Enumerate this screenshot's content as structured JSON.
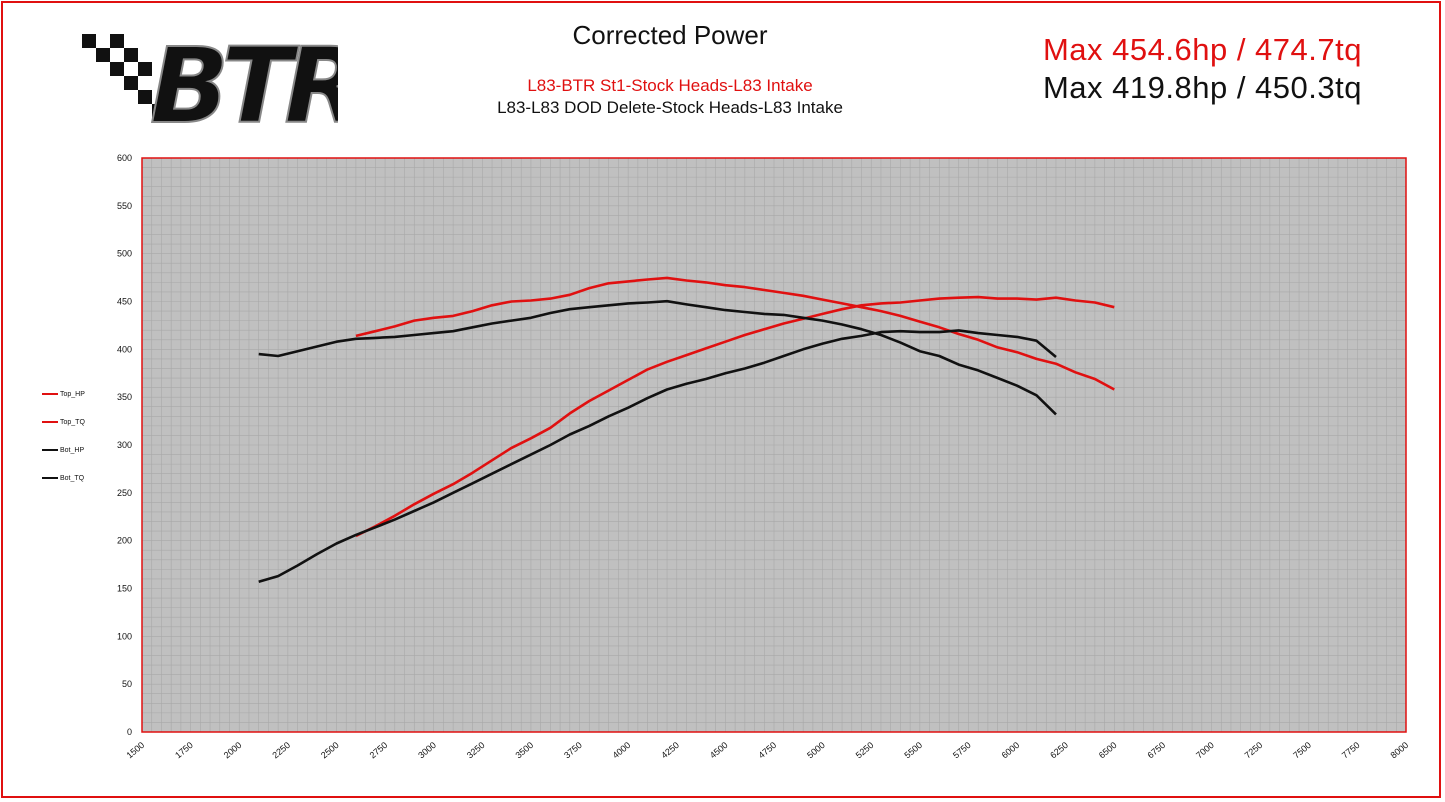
{
  "header": {
    "title": "Corrected Power",
    "subtitle_top": "L83-BTR St1-Stock Heads-L83 Intake",
    "subtitle_bottom": "L83-L83 DOD Delete-Stock Heads-L83 Intake",
    "max_top": "Max  454.6hp / 474.7tq",
    "max_bottom": "Max  419.8hp / 450.3tq"
  },
  "logo": {
    "text": "BTR"
  },
  "colors": {
    "top": "#e01010",
    "bottom": "#111111",
    "plot_bg": "#c0c0c0",
    "grid": "#a8a8a8",
    "border": "#e01010"
  },
  "legend": [
    {
      "label": "Top_HP",
      "color": "#e01010"
    },
    {
      "label": "Top_TQ",
      "color": "#e01010"
    },
    {
      "label": "Bot_HP",
      "color": "#111111"
    },
    {
      "label": "Bot_TQ",
      "color": "#111111"
    }
  ],
  "chart_data": {
    "type": "line",
    "title": "Corrected Power",
    "xlabel": "",
    "ylabel": "",
    "xlim": [
      1500,
      8000
    ],
    "ylim": [
      0,
      600
    ],
    "x_ticks": [
      1500,
      1750,
      2000,
      2250,
      2500,
      2750,
      3000,
      3250,
      3500,
      3750,
      4000,
      4250,
      4500,
      4750,
      5000,
      5250,
      5500,
      5750,
      6000,
      6250,
      6500,
      6750,
      7000,
      7250,
      7500,
      7750,
      8000
    ],
    "y_ticks": [
      0,
      50,
      100,
      150,
      200,
      250,
      300,
      350,
      400,
      450,
      500,
      550,
      600
    ],
    "grid": true,
    "legend_position": "left",
    "series": [
      {
        "name": "Top_HP",
        "color": "#e01010",
        "points": [
          [
            2600,
            205
          ],
          [
            2700,
            215
          ],
          [
            2800,
            226
          ],
          [
            2900,
            238
          ],
          [
            3000,
            249
          ],
          [
            3100,
            259
          ],
          [
            3200,
            271
          ],
          [
            3300,
            284
          ],
          [
            3400,
            297
          ],
          [
            3500,
            307
          ],
          [
            3600,
            318
          ],
          [
            3700,
            333
          ],
          [
            3800,
            346
          ],
          [
            3900,
            357
          ],
          [
            4000,
            368
          ],
          [
            4100,
            379
          ],
          [
            4200,
            387
          ],
          [
            4300,
            394
          ],
          [
            4400,
            401
          ],
          [
            4500,
            408
          ],
          [
            4600,
            415
          ],
          [
            4700,
            421
          ],
          [
            4800,
            427
          ],
          [
            4900,
            432
          ],
          [
            5000,
            437
          ],
          [
            5100,
            442
          ],
          [
            5200,
            446
          ],
          [
            5300,
            448
          ],
          [
            5400,
            449
          ],
          [
            5500,
            451
          ],
          [
            5600,
            453
          ],
          [
            5700,
            454
          ],
          [
            5800,
            454.6
          ],
          [
            5900,
            453
          ],
          [
            6000,
            453
          ],
          [
            6100,
            452
          ],
          [
            6200,
            454
          ],
          [
            6300,
            451
          ],
          [
            6400,
            449
          ],
          [
            6500,
            444
          ]
        ]
      },
      {
        "name": "Top_TQ",
        "color": "#e01010",
        "points": [
          [
            2600,
            414
          ],
          [
            2700,
            419
          ],
          [
            2800,
            424
          ],
          [
            2900,
            430
          ],
          [
            3000,
            433
          ],
          [
            3100,
            435
          ],
          [
            3200,
            440
          ],
          [
            3300,
            446
          ],
          [
            3400,
            450
          ],
          [
            3500,
            451
          ],
          [
            3600,
            453
          ],
          [
            3700,
            457
          ],
          [
            3800,
            464
          ],
          [
            3900,
            469
          ],
          [
            4000,
            471
          ],
          [
            4100,
            473
          ],
          [
            4200,
            474.7
          ],
          [
            4300,
            472
          ],
          [
            4400,
            470
          ],
          [
            4500,
            467
          ],
          [
            4600,
            465
          ],
          [
            4700,
            462
          ],
          [
            4800,
            459
          ],
          [
            4900,
            456
          ],
          [
            5000,
            452
          ],
          [
            5100,
            448
          ],
          [
            5200,
            444
          ],
          [
            5300,
            440
          ],
          [
            5400,
            435
          ],
          [
            5500,
            429
          ],
          [
            5600,
            423
          ],
          [
            5700,
            416
          ],
          [
            5800,
            410
          ],
          [
            5900,
            402
          ],
          [
            6000,
            397
          ],
          [
            6100,
            390
          ],
          [
            6200,
            385
          ],
          [
            6300,
            376
          ],
          [
            6400,
            369
          ],
          [
            6500,
            358
          ]
        ]
      },
      {
        "name": "Bot_HP",
        "color": "#111111",
        "points": [
          [
            2100,
            157
          ],
          [
            2200,
            163
          ],
          [
            2300,
            174
          ],
          [
            2400,
            186
          ],
          [
            2500,
            197
          ],
          [
            2600,
            206
          ],
          [
            2700,
            214
          ],
          [
            2800,
            222
          ],
          [
            2900,
            231
          ],
          [
            3000,
            240
          ],
          [
            3100,
            250
          ],
          [
            3200,
            260
          ],
          [
            3300,
            270
          ],
          [
            3400,
            280
          ],
          [
            3500,
            290
          ],
          [
            3600,
            300
          ],
          [
            3700,
            311
          ],
          [
            3800,
            320
          ],
          [
            3900,
            330
          ],
          [
            4000,
            339
          ],
          [
            4100,
            349
          ],
          [
            4200,
            358
          ],
          [
            4300,
            364
          ],
          [
            4400,
            369
          ],
          [
            4500,
            375
          ],
          [
            4600,
            380
          ],
          [
            4700,
            386
          ],
          [
            4800,
            393
          ],
          [
            4900,
            400
          ],
          [
            5000,
            406
          ],
          [
            5100,
            411
          ],
          [
            5200,
            414
          ],
          [
            5300,
            418
          ],
          [
            5400,
            419
          ],
          [
            5500,
            418
          ],
          [
            5600,
            418
          ],
          [
            5700,
            419.8
          ],
          [
            5800,
            417
          ],
          [
            5900,
            415
          ],
          [
            6000,
            413
          ],
          [
            6100,
            409
          ],
          [
            6200,
            392
          ]
        ]
      },
      {
        "name": "Bot_TQ",
        "color": "#111111",
        "points": [
          [
            2100,
            395
          ],
          [
            2200,
            393
          ],
          [
            2300,
            398
          ],
          [
            2400,
            403
          ],
          [
            2500,
            408
          ],
          [
            2600,
            411
          ],
          [
            2700,
            412
          ],
          [
            2800,
            413
          ],
          [
            2900,
            415
          ],
          [
            3000,
            417
          ],
          [
            3100,
            419
          ],
          [
            3200,
            423
          ],
          [
            3300,
            427
          ],
          [
            3400,
            430
          ],
          [
            3500,
            433
          ],
          [
            3600,
            438
          ],
          [
            3700,
            442
          ],
          [
            3800,
            444
          ],
          [
            3900,
            446
          ],
          [
            4000,
            448
          ],
          [
            4100,
            449
          ],
          [
            4200,
            450.3
          ],
          [
            4300,
            447
          ],
          [
            4400,
            444
          ],
          [
            4500,
            441
          ],
          [
            4600,
            439
          ],
          [
            4700,
            437
          ],
          [
            4800,
            436
          ],
          [
            4900,
            433
          ],
          [
            5000,
            430
          ],
          [
            5100,
            426
          ],
          [
            5200,
            421
          ],
          [
            5300,
            415
          ],
          [
            5400,
            407
          ],
          [
            5500,
            398
          ],
          [
            5600,
            393
          ],
          [
            5700,
            384
          ],
          [
            5800,
            378
          ],
          [
            5900,
            370
          ],
          [
            6000,
            362
          ],
          [
            6100,
            352
          ],
          [
            6200,
            332
          ]
        ]
      }
    ]
  }
}
